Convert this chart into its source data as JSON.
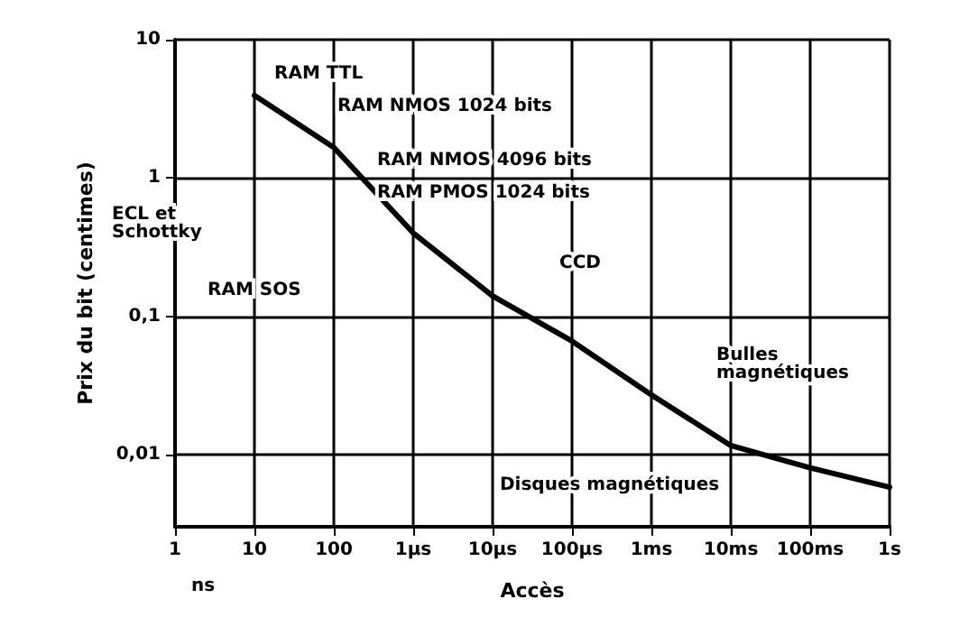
{
  "chart_data": {
    "type": "line",
    "xlabel": "Accès",
    "ylabel": "Prix du bit (centimes)",
    "categories": [
      "1",
      "10",
      "100",
      "1µs",
      "10µs",
      "100µs",
      "1ms",
      "10ms",
      "100ms",
      "1s"
    ],
    "series": [
      {
        "color": "#000000",
        "values": [
          null,
          3.95,
          1.66,
          0.4,
          0.14,
          0.066,
          0.027,
          0.0116,
          0.008,
          0.0058
        ]
      }
    ],
    "log": "y",
    "ylim": [
      0.003,
      10
    ],
    "yticks": [
      {
        "value": 0.01,
        "label": "0,01"
      },
      {
        "value": 0.1,
        "label": "0,1"
      },
      {
        "value": 1,
        "label": "1"
      },
      {
        "value": 10,
        "label": "10"
      }
    ],
    "grid": true,
    "marker": "none",
    "line_style": "solid",
    "annotations": [
      "RAM TTL",
      "RAM NMOS 1024 bits",
      "RAM NMOS 4096 bits",
      "RAM PMOS 1024 bits",
      "ECL et Schottky",
      "RAM SOS",
      "CCD",
      "Bulles magnétiques",
      "Disques magnétiques",
      "ns"
    ]
  }
}
